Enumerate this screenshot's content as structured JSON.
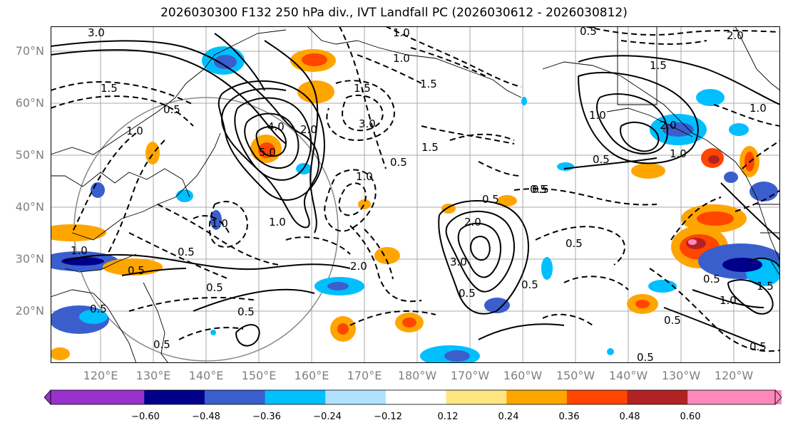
{
  "title": "2026030300 F132 250 hPa div., IVT Landfall PC (2026030612 - 2026030812)",
  "lat_labels": [
    "70°N",
    "60°N",
    "50°N",
    "40°N",
    "30°N",
    "20°N"
  ],
  "lon_labels": [
    "120°E",
    "130°E",
    "140°E",
    "150°E",
    "160°E",
    "170°E",
    "180°W",
    "170°W",
    "160°W",
    "150°W",
    "140°W",
    "130°W",
    "120°W"
  ],
  "colorbar": {
    "ticks": [
      "−0.60",
      "−0.48",
      "−0.36",
      "−0.24",
      "−0.12",
      "0.12",
      "0.24",
      "0.36",
      "0.48",
      "0.60"
    ],
    "colors": [
      "#9932CC",
      "#00008B",
      "#3A5FCD",
      "#00BFFF",
      "#B0E2FF",
      "#FFFFFF",
      "#FFE680",
      "#FFA500",
      "#FF4500",
      "#B22222",
      "#FF88BB"
    ]
  },
  "contour_labels": [
    "3.0",
    "1.0",
    "1.5",
    "2.0",
    "0.5",
    "1.5",
    "0.5",
    "1.0",
    "4.0",
    "5.0",
    "2.0",
    "3.0",
    "1.0",
    "0.5",
    "1.5",
    "1.0",
    "2.0",
    "0.5",
    "0.5",
    "1.0",
    "0.5",
    "0.5",
    "2.0",
    "3.0",
    "0.5",
    "0.5",
    "0.5",
    "1.0",
    "0.5",
    "1.0",
    "0.5",
    "0.5",
    "1.5",
    "1.0",
    "0.5",
    "0.5",
    "0.5",
    "1.0",
    "0.5",
    "1.0",
    "0.5",
    "1.0",
    "1.5",
    "0.5",
    "0.5",
    "2.0",
    "1.5"
  ]
}
